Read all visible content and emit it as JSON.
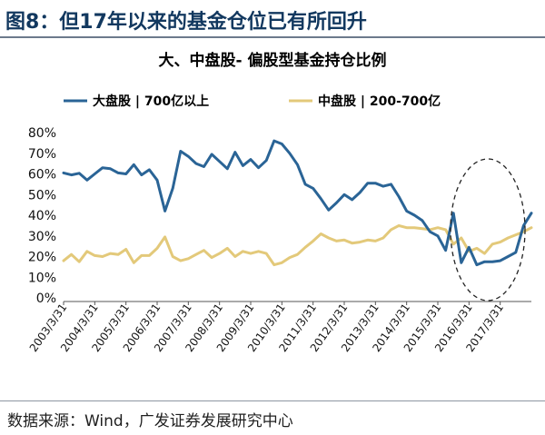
{
  "figure_title": "图8：但17年以来的基金仓位已有所回升",
  "source": "数据来源：Wind，广发证券发展研究中心",
  "chart_data": {
    "type": "line",
    "title": "大、中盘股- 偏股型基金持仓比例",
    "xlabel": "",
    "ylabel": "",
    "ylim": [
      0,
      80
    ],
    "y_ticks": [
      "0%",
      "10%",
      "20%",
      "30%",
      "40%",
      "50%",
      "60%",
      "70%",
      "80%"
    ],
    "x_tick_labels": [
      "2003/3/31",
      "2004/3/31",
      "2005/3/31",
      "2006/3/31",
      "2007/3/31",
      "2008/3/31",
      "2009/3/31",
      "2010/3/31",
      "2011/3/31",
      "2012/3/31",
      "2013/3/31",
      "2014/3/31",
      "2015/3/31",
      "2016/3/31",
      "2017/3/31"
    ],
    "x_start": "2003/3/31",
    "x_period": "quarterly",
    "legend_position": "top",
    "grid": false,
    "series": [
      {
        "name": "大盘股 | 700亿以上",
        "color": "#2a6496",
        "values": [
          60.5,
          59.5,
          60.3,
          57,
          60,
          63,
          62.5,
          60.5,
          60,
          64.5,
          59.5,
          62,
          57,
          42,
          53,
          71,
          68.5,
          65,
          63.5,
          69.5,
          66,
          62.5,
          70.5,
          64,
          67,
          63,
          66.5,
          76,
          74.5,
          70,
          64.5,
          55,
          53,
          48,
          42.5,
          46,
          50,
          47.5,
          51,
          55.5,
          55.5,
          54,
          55,
          49,
          42,
          40,
          37.5,
          32,
          30,
          23,
          41,
          17,
          24.5,
          16,
          17.5,
          17.5,
          18,
          20,
          22,
          35,
          41
        ]
      },
      {
        "name": "中盘股 | 200-700亿",
        "color": "#e3c97a",
        "values": [
          18,
          21,
          17.5,
          22.5,
          20.5,
          20,
          21.5,
          21,
          23.5,
          17,
          20.5,
          20.5,
          24,
          29.5,
          20,
          18,
          19,
          21,
          23,
          19.5,
          21.5,
          24,
          20,
          22.5,
          21.5,
          22.5,
          21.5,
          16,
          17,
          19.5,
          21,
          24.5,
          27.5,
          31,
          29,
          27.5,
          28,
          26.5,
          27,
          28,
          27.5,
          29,
          33,
          35,
          34,
          34,
          33.5,
          33,
          34,
          33,
          26,
          29,
          22.5,
          24,
          21.5,
          26,
          27,
          29,
          30.5,
          32,
          34
        ]
      }
    ]
  }
}
